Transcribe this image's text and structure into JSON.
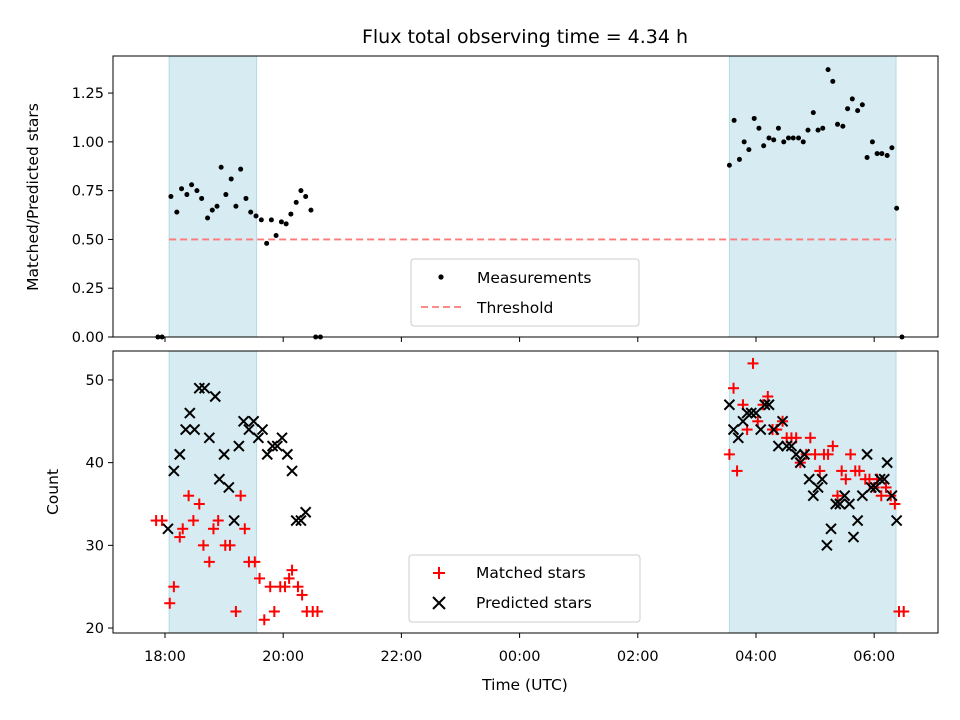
{
  "chart_data": [
    {
      "type": "scatter",
      "title": "Flux total observing time = 4.34 h",
      "xlabel": "",
      "ylabel": "Matched/Predicted stars",
      "x_unit": "hours since 00:00 UTC (day 1 = previous evening)",
      "xlim": [
        -6.88,
        7.08
      ],
      "ylim": [
        0,
        1.44
      ],
      "yticks": [
        "0.00",
        "0.25",
        "0.50",
        "0.75",
        "1.00",
        "1.25"
      ],
      "shaded_spans": [
        [
          -5.93,
          -4.45
        ],
        [
          3.55,
          6.37
        ]
      ],
      "shade_color": "#add8e6",
      "threshold": {
        "name": "Threshold",
        "value": 0.5,
        "x_range": [
          -5.93,
          6.37
        ],
        "color": "#ff7a7a"
      },
      "measurements_name": "Measurements",
      "legend_position": "lower-center",
      "series": [
        {
          "name": "Measurements",
          "color": "#000000",
          "points": [
            [
              -6.12,
              0.0
            ],
            [
              -6.05,
              0.0
            ],
            [
              -5.9,
              0.72
            ],
            [
              -5.8,
              0.64
            ],
            [
              -5.72,
              0.76
            ],
            [
              -5.63,
              0.73
            ],
            [
              -5.55,
              0.78
            ],
            [
              -5.46,
              0.75
            ],
            [
              -5.38,
              0.71
            ],
            [
              -5.28,
              0.61
            ],
            [
              -5.2,
              0.65
            ],
            [
              -5.12,
              0.67
            ],
            [
              -5.05,
              0.87
            ],
            [
              -4.97,
              0.73
            ],
            [
              -4.88,
              0.81
            ],
            [
              -4.8,
              0.67
            ],
            [
              -4.72,
              0.86
            ],
            [
              -4.63,
              0.71
            ],
            [
              -4.55,
              0.64
            ],
            [
              -4.46,
              0.62
            ],
            [
              -4.37,
              0.6
            ],
            [
              -4.28,
              0.48
            ],
            [
              -4.2,
              0.6
            ],
            [
              -4.12,
              0.52
            ],
            [
              -4.03,
              0.59
            ],
            [
              -3.95,
              0.58
            ],
            [
              -3.87,
              0.63
            ],
            [
              -3.78,
              0.69
            ],
            [
              -3.7,
              0.75
            ],
            [
              -3.62,
              0.72
            ],
            [
              -3.53,
              0.65
            ],
            [
              -3.45,
              0.0
            ],
            [
              -3.37,
              0.0
            ],
            [
              3.55,
              0.88
            ],
            [
              3.63,
              1.11
            ],
            [
              3.72,
              0.91
            ],
            [
              3.8,
              1.0
            ],
            [
              3.88,
              0.96
            ],
            [
              3.97,
              1.12
            ],
            [
              4.05,
              1.07
            ],
            [
              4.13,
              0.98
            ],
            [
              4.22,
              1.02
            ],
            [
              4.3,
              1.01
            ],
            [
              4.38,
              1.07
            ],
            [
              4.47,
              1.0
            ],
            [
              4.55,
              1.02
            ],
            [
              4.63,
              1.02
            ],
            [
              4.72,
              1.02
            ],
            [
              4.8,
              1.0
            ],
            [
              4.88,
              1.06
            ],
            [
              4.97,
              1.15
            ],
            [
              5.05,
              1.06
            ],
            [
              5.13,
              1.07
            ],
            [
              5.22,
              1.37
            ],
            [
              5.3,
              1.31
            ],
            [
              5.38,
              1.09
            ],
            [
              5.47,
              1.08
            ],
            [
              5.55,
              1.17
            ],
            [
              5.63,
              1.22
            ],
            [
              5.72,
              1.16
            ],
            [
              5.8,
              1.19
            ],
            [
              5.88,
              0.92
            ],
            [
              5.97,
              1.0
            ],
            [
              6.05,
              0.94
            ],
            [
              6.13,
              0.94
            ],
            [
              6.22,
              0.93
            ],
            [
              6.3,
              0.97
            ],
            [
              6.38,
              0.66
            ],
            [
              6.47,
              0.0
            ]
          ]
        }
      ]
    },
    {
      "type": "scatter",
      "title": "",
      "xlabel": "Time (UTC)",
      "ylabel": "Count",
      "xlim": [
        -6.88,
        7.08
      ],
      "ylim": [
        19.4,
        53.5
      ],
      "yticks": [
        "20",
        "30",
        "40",
        "50"
      ],
      "xticks": [
        {
          "value": -6,
          "label": "18:00"
        },
        {
          "value": -4,
          "label": "20:00"
        },
        {
          "value": -2,
          "label": "22:00"
        },
        {
          "value": 0,
          "label": "00:00"
        },
        {
          "value": 2,
          "label": "02:00"
        },
        {
          "value": 4,
          "label": "04:00"
        },
        {
          "value": 6,
          "label": "06:00"
        }
      ],
      "shaded_spans": [
        [
          -5.93,
          -4.45
        ],
        [
          3.55,
          6.37
        ]
      ],
      "shade_color": "#add8e6",
      "legend_position": "lower-center",
      "series": [
        {
          "name": "Matched stars",
          "marker": "plus",
          "color": "#ff0000",
          "points": [
            [
              -6.15,
              33
            ],
            [
              -6.05,
              33
            ],
            [
              -5.92,
              23
            ],
            [
              -5.85,
              25
            ],
            [
              -5.75,
              31
            ],
            [
              -5.7,
              32
            ],
            [
              -5.6,
              36
            ],
            [
              -5.52,
              33
            ],
            [
              -5.42,
              35
            ],
            [
              -5.35,
              30
            ],
            [
              -5.25,
              28
            ],
            [
              -5.18,
              32
            ],
            [
              -5.1,
              33
            ],
            [
              -4.98,
              30
            ],
            [
              -4.9,
              30
            ],
            [
              -4.8,
              22
            ],
            [
              -4.72,
              36
            ],
            [
              -4.65,
              32
            ],
            [
              -4.58,
              28
            ],
            [
              -4.48,
              28
            ],
            [
              -4.4,
              26
            ],
            [
              -4.32,
              21
            ],
            [
              -4.22,
              25
            ],
            [
              -4.15,
              22
            ],
            [
              -4.05,
              25
            ],
            [
              -3.97,
              25
            ],
            [
              -3.9,
              26
            ],
            [
              -3.85,
              27
            ],
            [
              -3.75,
              25
            ],
            [
              -3.68,
              24
            ],
            [
              -3.6,
              22
            ],
            [
              -3.5,
              22
            ],
            [
              -3.42,
              22
            ],
            [
              3.55,
              41
            ],
            [
              3.62,
              49
            ],
            [
              3.68,
              39
            ],
            [
              3.78,
              47
            ],
            [
              3.85,
              44
            ],
            [
              3.95,
              52
            ],
            [
              4.03,
              45
            ],
            [
              4.12,
              47
            ],
            [
              4.2,
              48
            ],
            [
              4.28,
              44
            ],
            [
              4.35,
              44
            ],
            [
              4.45,
              45
            ],
            [
              4.52,
              43
            ],
            [
              4.6,
              43
            ],
            [
              4.68,
              43
            ],
            [
              4.75,
              40
            ],
            [
              4.85,
              41
            ],
            [
              4.92,
              43
            ],
            [
              5.0,
              41
            ],
            [
              5.08,
              39
            ],
            [
              5.15,
              41
            ],
            [
              5.22,
              41
            ],
            [
              5.3,
              42
            ],
            [
              5.38,
              36
            ],
            [
              5.45,
              39
            ],
            [
              5.52,
              38
            ],
            [
              5.6,
              41
            ],
            [
              5.68,
              39
            ],
            [
              5.75,
              39
            ],
            [
              5.85,
              38
            ],
            [
              5.92,
              38
            ],
            [
              6.0,
              37
            ],
            [
              6.05,
              38
            ],
            [
              6.12,
              36
            ],
            [
              6.2,
              37
            ],
            [
              6.28,
              36
            ],
            [
              6.35,
              35
            ],
            [
              6.42,
              22
            ],
            [
              6.5,
              22
            ]
          ]
        },
        {
          "name": "Predicted stars",
          "marker": "x",
          "color": "#000000",
          "points": [
            [
              -5.95,
              32
            ],
            [
              -5.85,
              39
            ],
            [
              -5.75,
              41
            ],
            [
              -5.65,
              44
            ],
            [
              -5.58,
              46
            ],
            [
              -5.5,
              44
            ],
            [
              -5.42,
              49
            ],
            [
              -5.33,
              49
            ],
            [
              -5.25,
              43
            ],
            [
              -5.15,
              48
            ],
            [
              -5.08,
              38
            ],
            [
              -5.0,
              41
            ],
            [
              -4.92,
              37
            ],
            [
              -4.83,
              33
            ],
            [
              -4.75,
              42
            ],
            [
              -4.67,
              45
            ],
            [
              -4.58,
              44
            ],
            [
              -4.5,
              45
            ],
            [
              -4.42,
              43
            ],
            [
              -4.35,
              44
            ],
            [
              -4.27,
              41
            ],
            [
              -4.18,
              42
            ],
            [
              -4.1,
              42
            ],
            [
              -4.02,
              43
            ],
            [
              -3.93,
              41
            ],
            [
              -3.85,
              39
            ],
            [
              -3.78,
              33
            ],
            [
              -3.7,
              33
            ],
            [
              -3.62,
              34
            ],
            [
              3.55,
              47
            ],
            [
              3.62,
              44
            ],
            [
              3.7,
              43
            ],
            [
              3.78,
              45
            ],
            [
              3.85,
              46
            ],
            [
              3.92,
              46
            ],
            [
              4.0,
              46
            ],
            [
              4.08,
              44
            ],
            [
              4.15,
              47
            ],
            [
              4.22,
              47
            ],
            [
              4.3,
              44
            ],
            [
              4.38,
              42
            ],
            [
              4.45,
              45
            ],
            [
              4.52,
              42
            ],
            [
              4.6,
              42
            ],
            [
              4.68,
              41
            ],
            [
              4.75,
              40
            ],
            [
              4.82,
              41
            ],
            [
              4.9,
              38
            ],
            [
              4.97,
              36
            ],
            [
              5.05,
              37
            ],
            [
              5.12,
              38
            ],
            [
              5.2,
              30
            ],
            [
              5.27,
              32
            ],
            [
              5.35,
              35
            ],
            [
              5.42,
              35
            ],
            [
              5.5,
              36
            ],
            [
              5.58,
              35
            ],
            [
              5.65,
              31
            ],
            [
              5.72,
              33
            ],
            [
              5.8,
              36
            ],
            [
              5.88,
              41
            ],
            [
              5.95,
              37
            ],
            [
              6.02,
              37
            ],
            [
              6.1,
              38
            ],
            [
              6.17,
              38
            ],
            [
              6.22,
              40
            ],
            [
              6.3,
              36
            ],
            [
              6.38,
              33
            ]
          ]
        }
      ]
    }
  ]
}
